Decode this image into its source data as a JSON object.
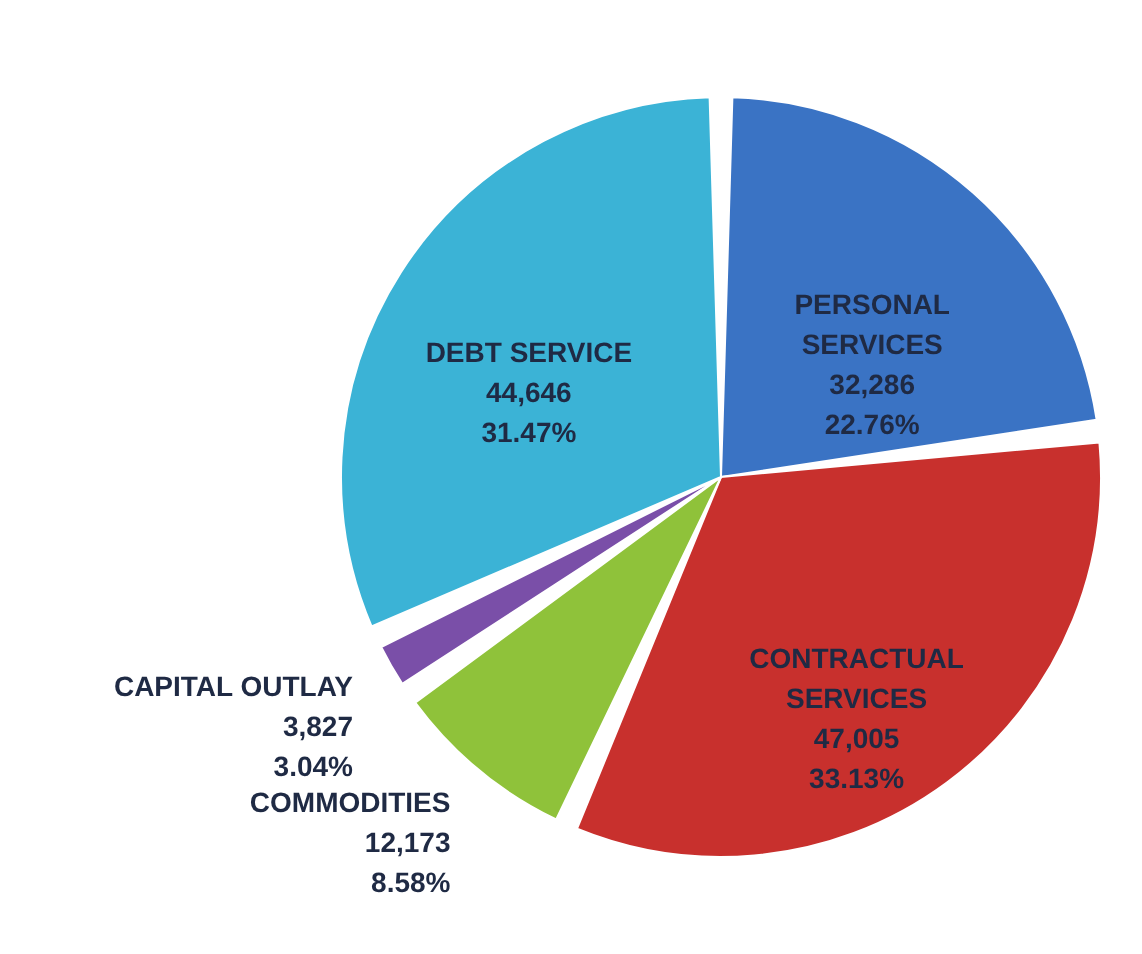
{
  "chart_data": {
    "type": "pie",
    "categories": [
      "PERSONAL SERVICES",
      "CONTRACTUAL SERVICES",
      "COMMODITIES",
      "CAPITAL OUTLAY",
      "DEBT SERVICE"
    ],
    "values": [
      32286,
      47005,
      12173,
      3827,
      44646
    ],
    "value_labels": [
      "32,286\n22.76%",
      "47,005\n33.13%",
      "12,173\n8.58%",
      "3,827\n3.04%",
      "44,646\n31.47%"
    ],
    "colors": [
      "#3a73c4",
      "#c8302d",
      "#8fc23a",
      "#7a4fa8",
      "#3bb3d6"
    ]
  }
}
